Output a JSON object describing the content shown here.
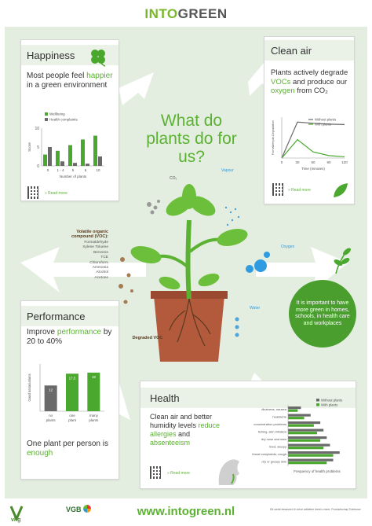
{
  "header": {
    "logo_into": "INTO",
    "logo_green": "GREEN"
  },
  "center": {
    "question": "What do plants do for us?"
  },
  "happiness": {
    "title": "Happiness",
    "lead_pre": "Most people feel ",
    "lead_em": "happier",
    "lead_post": " in a green environment",
    "legend_wellbeing": "Wellbeing",
    "legend_complaints": "Health complaints",
    "ylabel": "Score",
    "xlabel": "Number of plants",
    "readmore": "» Read more"
  },
  "clean_air": {
    "title": "Clean air",
    "line1": "Plants actively degrade ",
    "voc": "VOCs",
    "line2": " and produce our ",
    "oxygen": "oxygen",
    "line3": " from CO₂",
    "legend_without": "Without plants",
    "legend_with": "With plants",
    "ylabel": "Formaldehyde-Degradation",
    "xlabel": "Time (minutes)",
    "readmore": "» Read more"
  },
  "performance": {
    "title": "Performance",
    "line1": "Improve ",
    "em": "performance",
    "line2": " by 20 to 40%",
    "ylabel": "Good associations",
    "footer_a": "One plant per person is ",
    "footer_em": "enough"
  },
  "health": {
    "title": "Health",
    "line1": "Clean air and better humidity levels ",
    "reduce": "reduce allergies",
    "line2": " and ",
    "absent": "absenteeism",
    "legend_without": "Without plants",
    "legend_with": "With plants",
    "xlabel": "Frequency of health problems",
    "readmore": "» Read more"
  },
  "plant_labels": {
    "co2": "CO₂",
    "vapour": "Vapour",
    "oxygen": "Oxygen",
    "water": "Water",
    "degraded": "Degraded VOC",
    "voc_title": "Volatile organic compound (VOC):",
    "voc_list": [
      "Formaldehyde",
      "Xylene Toluene",
      "Benzene",
      "TCE",
      "Chloroform",
      "Ammonia",
      "Alcohol",
      "Acetone"
    ]
  },
  "circle_msg": "It is important to have more green in homes, schools, in health care and workplaces",
  "footer": {
    "url": "www.intogreen.nl",
    "vhg": "vhg",
    "vgb": "VGB",
    "fine": "Dit werkt bewezen! In deze artikelen leest u meer. Productschap Tuinbouw"
  },
  "chart_data": [
    {
      "type": "bar",
      "title": "",
      "categories": [
        "0",
        "1 - 4",
        "5",
        "6",
        "10"
      ],
      "series": [
        {
          "name": "Wellbeing",
          "values": [
            3,
            4,
            5.5,
            7,
            8
          ]
        },
        {
          "name": "Health complaints",
          "values": [
            5,
            1.2,
            0.8,
            0.6,
            2.5
          ]
        }
      ],
      "xlabel": "Number of plants",
      "ylabel": "Score",
      "yticks": [
        "0",
        "5",
        "10"
      ],
      "ylim": [
        0,
        10
      ],
      "legend": "top-left"
    },
    {
      "type": "line",
      "title": "",
      "x": [
        0,
        30,
        60,
        90,
        120
      ],
      "series": [
        {
          "name": "Without plants",
          "values": [
            0,
            8.8,
            8.5,
            8.3,
            8.2
          ]
        },
        {
          "name": "With plants",
          "values": [
            0,
            4.5,
            1.5,
            0.6,
            0.3
          ]
        }
      ],
      "xlabel": "Time (minutes)",
      "ylabel": "Formaldehyde-Degradation",
      "xlim": [
        0,
        120
      ],
      "legend": "top-right"
    },
    {
      "type": "bar",
      "title": "",
      "categories": [
        "no plants",
        "one plant",
        "many plants"
      ],
      "values": [
        12,
        17.5,
        18
      ],
      "value_labels": [
        "12",
        "17,5",
        "18"
      ],
      "ylabel": "Good associations",
      "ylim": [
        0,
        22
      ]
    },
    {
      "type": "bar",
      "orientation": "horizontal",
      "title": "",
      "categories": [
        "dizziness, nausea",
        "headache",
        "concentration problems",
        "itching, skin irritation",
        "dry nose and ears",
        "tired, sleepy",
        "throat complaints, cough",
        "dry or greasy skin"
      ],
      "series": [
        {
          "name": "Without plants",
          "values": [
            4,
            7,
            10,
            11,
            12,
            13,
            16,
            14
          ]
        },
        {
          "name": "With plants",
          "values": [
            3,
            5,
            8,
            9,
            10,
            11,
            14,
            12
          ]
        }
      ],
      "xlabel": "Frequency of health problems",
      "legend": "top-right"
    }
  ]
}
